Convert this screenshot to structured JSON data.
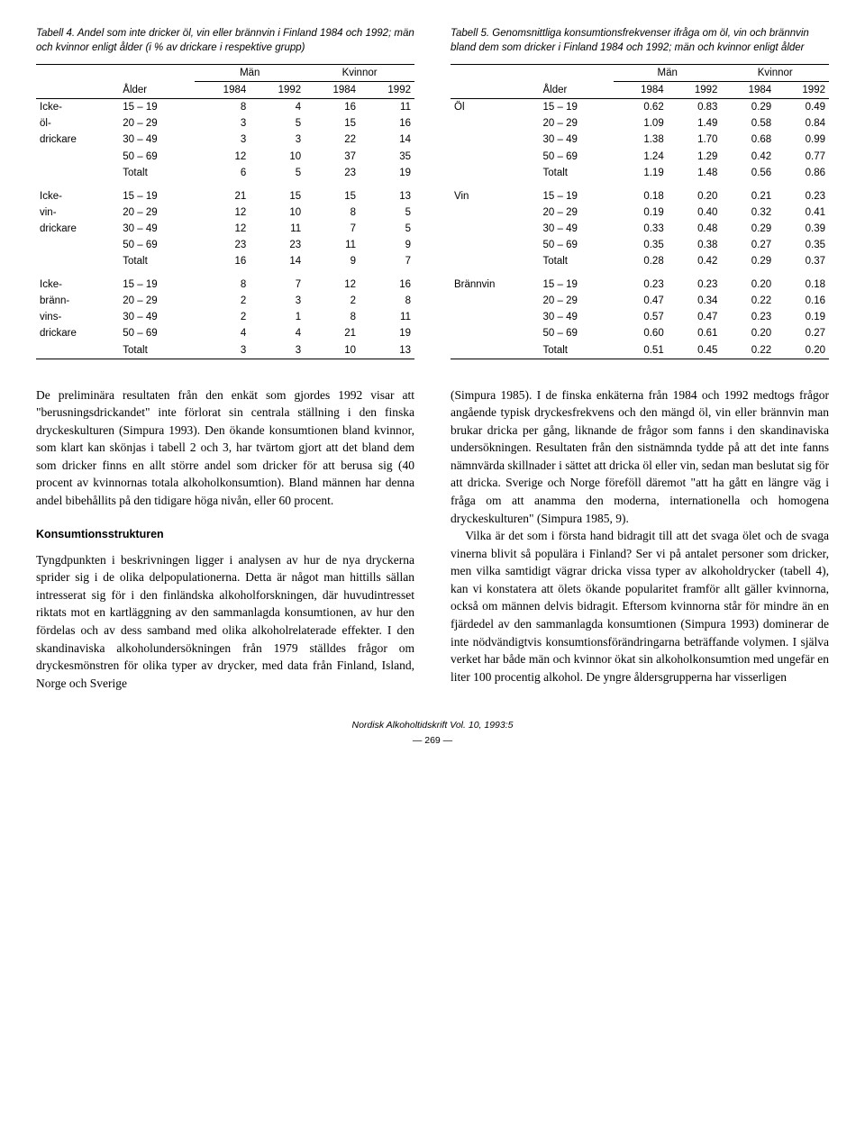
{
  "table4": {
    "label": "Tabell 4.",
    "caption": "Andel som inte dricker öl, vin eller brännvin i Finland 1984 och 1992; män och kvinnor enligt ålder (i % av drickare i respektive grupp)",
    "head_man": "Män",
    "head_kvinnor": "Kvinnor",
    "head_alder": "Ålder",
    "years": [
      "1984",
      "1992",
      "1984",
      "1992"
    ],
    "groups": [
      {
        "name": "Icke-öl-drickare",
        "rows": [
          {
            "age": "15 – 19",
            "v": [
              "8",
              "4",
              "16",
              "11"
            ]
          },
          {
            "age": "20 – 29",
            "v": [
              "3",
              "5",
              "15",
              "16"
            ]
          },
          {
            "age": "30 – 49",
            "v": [
              "3",
              "3",
              "22",
              "14"
            ]
          },
          {
            "age": "50 – 69",
            "v": [
              "12",
              "10",
              "37",
              "35"
            ]
          }
        ],
        "total": {
          "label": "Totalt",
          "v": [
            "6",
            "5",
            "23",
            "19"
          ]
        }
      },
      {
        "name": "Icke-vin-drickare",
        "rows": [
          {
            "age": "15 – 19",
            "v": [
              "21",
              "15",
              "15",
              "13"
            ]
          },
          {
            "age": "20 – 29",
            "v": [
              "12",
              "10",
              "8",
              "5"
            ]
          },
          {
            "age": "30 – 49",
            "v": [
              "12",
              "11",
              "7",
              "5"
            ]
          },
          {
            "age": "50 – 69",
            "v": [
              "23",
              "23",
              "11",
              "9"
            ]
          }
        ],
        "total": {
          "label": "Totalt",
          "v": [
            "16",
            "14",
            "9",
            "7"
          ]
        }
      },
      {
        "name": "Icke-bränn-vins-drickare",
        "rows": [
          {
            "age": "15 – 19",
            "v": [
              "8",
              "7",
              "12",
              "16"
            ]
          },
          {
            "age": "20 – 29",
            "v": [
              "2",
              "3",
              "2",
              "8"
            ]
          },
          {
            "age": "30 – 49",
            "v": [
              "2",
              "1",
              "8",
              "11"
            ]
          },
          {
            "age": "50 – 69",
            "v": [
              "4",
              "4",
              "21",
              "19"
            ]
          }
        ],
        "total": {
          "label": "Totalt",
          "v": [
            "3",
            "3",
            "10",
            "13"
          ]
        }
      }
    ]
  },
  "table5": {
    "label": "Tabell 5.",
    "caption": "Genomsnittliga konsumtionsfrekvenser ifråga om öl, vin och brännvin bland dem som dricker i Finland 1984 och 1992; män och kvinnor enligt ålder",
    "head_man": "Män",
    "head_kvinnor": "Kvinnor",
    "head_alder": "Ålder",
    "years": [
      "1984",
      "1992",
      "1984",
      "1992"
    ],
    "groups": [
      {
        "name": "Öl",
        "rows": [
          {
            "age": "15 – 19",
            "v": [
              "0.62",
              "0.83",
              "0.29",
              "0.49"
            ]
          },
          {
            "age": "20 – 29",
            "v": [
              "1.09",
              "1.49",
              "0.58",
              "0.84"
            ]
          },
          {
            "age": "30 – 49",
            "v": [
              "1.38",
              "1.70",
              "0.68",
              "0.99"
            ]
          },
          {
            "age": "50 – 69",
            "v": [
              "1.24",
              "1.29",
              "0.42",
              "0.77"
            ]
          }
        ],
        "total": {
          "label": "Totalt",
          "v": [
            "1.19",
            "1.48",
            "0.56",
            "0.86"
          ]
        }
      },
      {
        "name": "Vin",
        "rows": [
          {
            "age": "15 – 19",
            "v": [
              "0.18",
              "0.20",
              "0.21",
              "0.23"
            ]
          },
          {
            "age": "20 – 29",
            "v": [
              "0.19",
              "0.40",
              "0.32",
              "0.41"
            ]
          },
          {
            "age": "30 – 49",
            "v": [
              "0.33",
              "0.48",
              "0.29",
              "0.39"
            ]
          },
          {
            "age": "50 – 69",
            "v": [
              "0.35",
              "0.38",
              "0.27",
              "0.35"
            ]
          }
        ],
        "total": {
          "label": "Totalt",
          "v": [
            "0.28",
            "0.42",
            "0.29",
            "0.37"
          ]
        }
      },
      {
        "name": "Brännvin",
        "rows": [
          {
            "age": "15 – 19",
            "v": [
              "0.23",
              "0.23",
              "0.20",
              "0.18"
            ]
          },
          {
            "age": "20 – 29",
            "v": [
              "0.47",
              "0.34",
              "0.22",
              "0.16"
            ]
          },
          {
            "age": "30 – 49",
            "v": [
              "0.57",
              "0.47",
              "0.23",
              "0.19"
            ]
          },
          {
            "age": "50 – 69",
            "v": [
              "0.60",
              "0.61",
              "0.20",
              "0.27"
            ]
          }
        ],
        "total": {
          "label": "Totalt",
          "v": [
            "0.51",
            "0.45",
            "0.22",
            "0.20"
          ]
        }
      }
    ]
  },
  "body": {
    "left_p1": "De preliminära resultaten från den enkät som gjordes 1992 visar att \"berusningsdrickandet\" inte förlorat sin centrala ställning i den finska dryckes­kulturen (Simpura 1993). Den ökande konsumtionen bland kvinnor, som klart kan skönjas i tabell 2 och 3, har tvärtom gjort att det bland dem som dricker finns en allt större andel som dricker för att berusa sig (40 procent av kvinnornas totala alkoholkonsumtion). Bland männen har denna andel bibehållits på den tidigare höga nivån, eller 60 procent.",
    "left_h": "Konsumtionsstrukturen",
    "left_p2": "Tyngdpunkten i beskrivningen ligger i analysen av hur de nya dryckerna sprider sig i de olika del­populationerna. Detta är något man hittills sällan intresserat sig för i den finländska alkoholforsk­ningen, där huvudintresset riktats mot en kart­läggning av den sammanlagda konsumtionen, av hur den fördelas och av dess samband med olika alkoholrelaterade effekter. I den skandinaviska alkoholundersökningen från 1979 ställdes frågor om dryckesmönstren för olika typer av drycker, med data från Finland, Island, Norge och Sverige",
    "right_p1": "(Simpura 1985). I de finska enkäterna från 1984 och 1992 medtogs frågor angående typisk dryckesfrekvens och den mängd öl, vin eller brännvin man brukar dricka per gång, liknande de frågor som fanns i den skandinaviska undersökningen. Resultaten från den sistnämnda tydde på att det inte fanns nämnvärda skillnader i sättet att dricka öl eller vin, sedan man beslutat sig för att dricka. Sverige och Norge föreföll däremot \"att ha gått en längre väg i fråga om att anamma den moderna, internationella och homogena dryckeskulturen\" (Simpura 1985, 9).",
    "right_p2": "Vilka är det som i första hand bidragit till att det svaga ölet och de svaga vinerna blivit så populära i Finland? Ser vi på antalet personer som dricker, men vilka samtidigt vägrar dricka vissa typer av alkoholdrycker (tabell 4), kan vi konstatera att ölets ökande popularitet framför allt gäller kvinnorna, också om männen delvis bidragit. Eftersom kvinnorna står för mindre än en fjärdedel av den sammanlagda konsumtionen (Simpura 1993) dominerar de inte nödvändigtvis konsumtions­förändringarna beträffande volymen. I själva verket har både män och kvinnor ökat sin alkohol­konsumtion med ungefär en liter 100 procentig alkohol. De yngre åldersgrupperna har visserligen"
  },
  "footer": {
    "journal": "Nordisk Alkoholtidskrift Vol. 10, 1993:5",
    "page": "— 269 —"
  }
}
